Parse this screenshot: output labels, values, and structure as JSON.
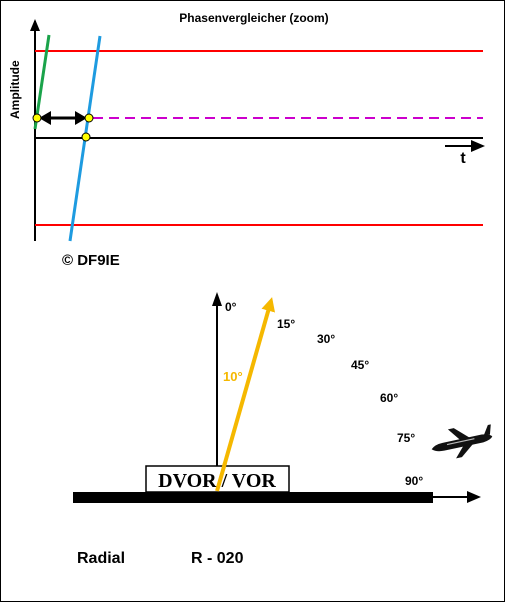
{
  "phase_chart": {
    "title": "Phasenvergleicher (zoom)",
    "y_axis_label": "Amplitude",
    "x_axis_label": "t",
    "copyright": "© DF9IE",
    "colors": {
      "limit_lines": "#ff0000",
      "reference_signal": "#1aa34a",
      "variable_signal": "#1e9be0",
      "phase_level": "#cc00cc",
      "markers": "#ffff00"
    }
  },
  "compass": {
    "angle_labels": [
      "0°",
      "15°",
      "30°",
      "45°",
      "60°",
      "75°",
      "90°"
    ],
    "needle_label": "10°",
    "station_label": "DVOR / VOR",
    "colors": {
      "needle": "#f5b800",
      "needle_label": "#f5b800"
    },
    "icons": [
      "airplane-icon"
    ]
  },
  "footer": {
    "radial_label": "Radial",
    "radial_value": "R - 020"
  }
}
